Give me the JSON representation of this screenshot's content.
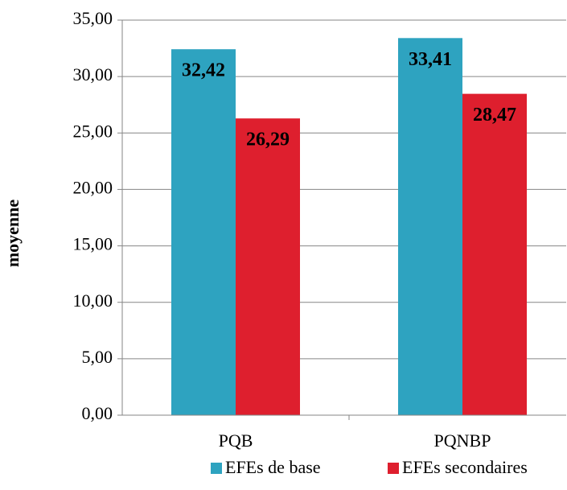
{
  "chart_data": {
    "type": "bar",
    "y_label": "moyenne",
    "categories": [
      "PQB",
      "PQNBP"
    ],
    "series": [
      {
        "name": "EFEs de base",
        "color": "#2ea3c0",
        "values": [
          32.42,
          33.41
        ],
        "value_labels": [
          "32,42",
          "33,41"
        ]
      },
      {
        "name": "EFEs secondaires",
        "color": "#de1f2e",
        "values": [
          26.29,
          28.47
        ],
        "value_labels": [
          "26,29",
          "28,47"
        ]
      }
    ],
    "ylim": [
      0,
      35
    ],
    "yticks": [
      {
        "value": 0,
        "label": "0,00"
      },
      {
        "value": 5,
        "label": "5,00"
      },
      {
        "value": 10,
        "label": "10,00"
      },
      {
        "value": 15,
        "label": "15,00"
      },
      {
        "value": 20,
        "label": "20,00"
      },
      {
        "value": 25,
        "label": "25,00"
      },
      {
        "value": 30,
        "label": "30,00"
      },
      {
        "value": 35,
        "label": "35,00"
      }
    ],
    "grid": true,
    "legend": "bottom"
  }
}
